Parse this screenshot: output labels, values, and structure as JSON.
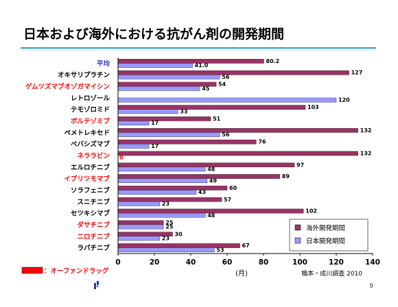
{
  "slide": {
    "title": "日本および海外における抗がん剤の開発期間",
    "page_number": "9",
    "orphan_legend_label": "：オーファンドラッグ",
    "source_note": "橋本・成川調査 2010"
  },
  "colors": {
    "overseas": "#993366",
    "japan": "#9999ff",
    "label_normal": "#000000",
    "label_orphan": "#ff0000",
    "label_average": "#3333cc",
    "title_rule": "#3399cc",
    "orphan_marker": "#ff0000"
  },
  "chart_data": {
    "type": "bar",
    "orientation": "horizontal",
    "categories": [
      "平均",
      "オキサリプラチン",
      "ゲムツズマブオゾガマイシン",
      "レトロゾール",
      "テモゾロミド",
      "ボルテゾミブ",
      "ペメトレキセド",
      "ベバシズマブ",
      "ネララビン",
      "エルロチニブ",
      "イブリツモマブ",
      "ソラフェニブ",
      "スニチニブ",
      "セツキシマブ",
      "ダサチニブ",
      "ニロチニブ",
      "ラパチニブ"
    ],
    "category_style": [
      "average",
      "normal",
      "orphan",
      "normal",
      "normal",
      "orphan",
      "normal",
      "normal",
      "orphan",
      "normal",
      "orphan",
      "normal",
      "normal",
      "normal",
      "orphan",
      "orphan",
      "normal"
    ],
    "series": [
      {
        "name": "海外開発期間",
        "values": [
          80.2,
          127,
          54,
          null,
          103,
          51,
          132,
          76,
          132,
          97,
          89,
          60,
          57,
          102,
          25,
          30,
          67
        ],
        "labels": [
          "80.2",
          "127",
          "54",
          "",
          "103",
          "51",
          "132",
          "76",
          "132",
          "97",
          "89",
          "60",
          "57",
          "102",
          "25",
          "30",
          "67"
        ]
      },
      {
        "name": "日本開発期間",
        "values": [
          41.0,
          56,
          45,
          120,
          33,
          17,
          56,
          17,
          0,
          48,
          49,
          43,
          23,
          48,
          25,
          23,
          53
        ],
        "labels": [
          "41.0",
          "56",
          "45",
          "120",
          "33",
          "17",
          "56",
          "17",
          "0",
          "48",
          "49",
          "43",
          "23",
          "48",
          "25",
          "23",
          "53"
        ]
      }
    ],
    "xlim": [
      0,
      140
    ],
    "xticks": [
      "0",
      "20",
      "40",
      "60",
      "80",
      "100",
      "120",
      "140"
    ],
    "xlabel": "(月)",
    "legend_position": "bottom-right",
    "grid": false
  }
}
